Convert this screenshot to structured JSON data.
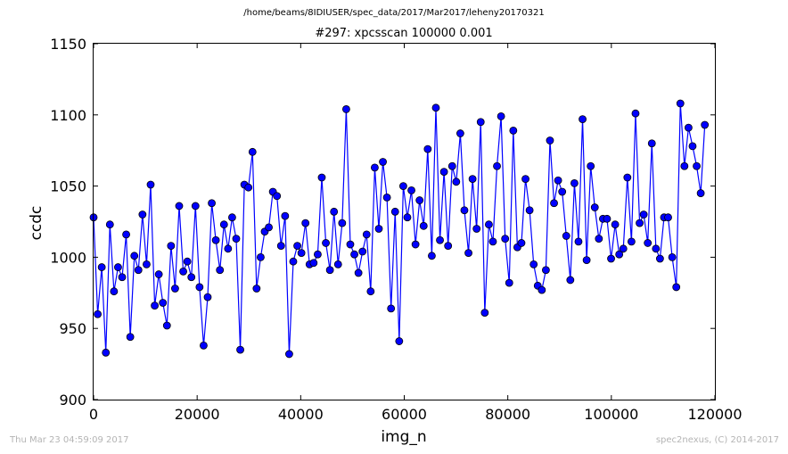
{
  "suptitle": "/home/beams/8IDIUSER/spec_data/2017/Mar2017/leheny20170321",
  "footer": {
    "timestamp": "Thu Mar 23 04:59:09 2017",
    "credit": "spec2nexus, (C) 2014-2017"
  },
  "colors": {
    "series": "#0000ff",
    "marker_edge": "#000000"
  },
  "chart_data": {
    "type": "line",
    "title": "#297: xpcsscan 100000 0.001",
    "xlabel": "img_n",
    "ylabel": "ccdc",
    "xlim": [
      0,
      120000
    ],
    "ylim": [
      900,
      1150
    ],
    "xticks": [
      0,
      20000,
      40000,
      60000,
      80000,
      100000,
      120000
    ],
    "xtick_labels": [
      "0",
      "20000",
      "40000",
      "60000",
      "80000",
      "100000",
      "120000"
    ],
    "yticks": [
      900,
      950,
      1000,
      1050,
      1100,
      1150
    ],
    "ytick_labels": [
      "900",
      "950",
      "1000",
      "1050",
      "1100",
      "1150"
    ],
    "grid": false,
    "legend": "none",
    "marker": "circle",
    "x_start": 0,
    "x_step": 787,
    "series": [
      {
        "values": [
          1028,
          960,
          993,
          933,
          1023,
          976,
          993,
          986,
          1016,
          944,
          1001,
          991,
          1030,
          995,
          1051,
          966,
          988,
          968,
          952,
          1008,
          978,
          1036,
          990,
          997,
          986,
          1036,
          979,
          938,
          972,
          1038,
          1012,
          991,
          1023,
          1006,
          1028,
          1013,
          935,
          1051,
          1049,
          1074,
          978,
          1000,
          1018,
          1021,
          1046,
          1043,
          1008,
          1029,
          932,
          997,
          1008,
          1003,
          1024,
          995,
          996,
          1002,
          1056,
          1010,
          991,
          1032,
          995,
          1024,
          1104,
          1009,
          1002,
          989,
          1004,
          1016,
          976,
          1063,
          1020,
          1067,
          1042,
          964,
          1032,
          941,
          1050,
          1028,
          1047,
          1009,
          1040,
          1022,
          1076,
          1001,
          1105,
          1012,
          1060,
          1008,
          1064,
          1053,
          1087,
          1033,
          1003,
          1055,
          1020,
          1095,
          961,
          1023,
          1011,
          1064,
          1099,
          1013,
          982,
          1089,
          1007,
          1010,
          1055,
          1033,
          995,
          980,
          977,
          991,
          1082,
          1038,
          1054,
          1046,
          1015,
          984,
          1052,
          1011,
          1097,
          998,
          1064,
          1035,
          1013,
          1027,
          1027,
          999,
          1023,
          1002,
          1006,
          1056,
          1011,
          1101,
          1024,
          1030,
          1010,
          1080,
          1006,
          999,
          1028,
          1028,
          1000,
          979,
          1108,
          1064,
          1091,
          1078,
          1064,
          1045,
          1093
        ]
      }
    ]
  }
}
